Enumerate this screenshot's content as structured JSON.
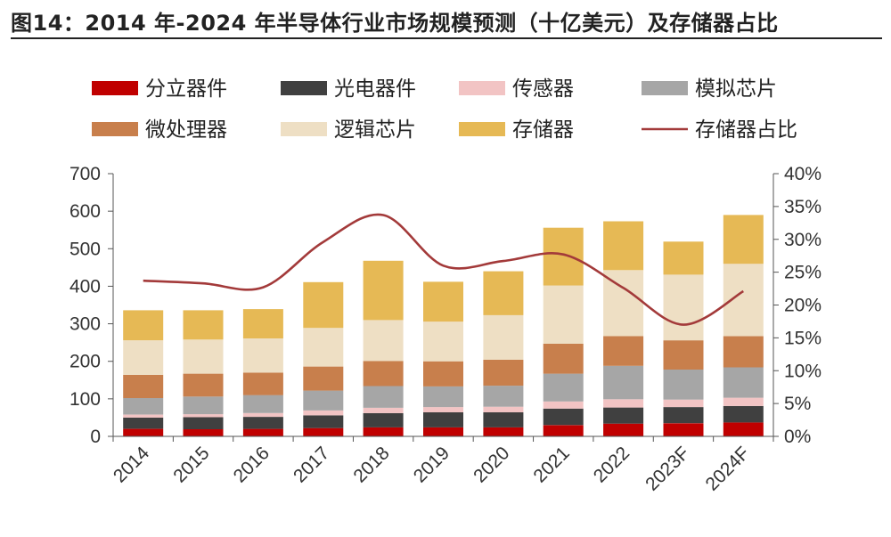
{
  "title": "图14：2014 年-2024 年半导体行业市场规模预测（十亿美元）及存储器占比",
  "chart_data": {
    "type": "bar",
    "stacked": true,
    "categories": [
      "2014",
      "2015",
      "2016",
      "2017",
      "2018",
      "2019",
      "2020",
      "2021",
      "2022",
      "2023F",
      "2024F"
    ],
    "ylim": [
      0,
      700
    ],
    "y_ticks": [
      "0",
      "100",
      "200",
      "300",
      "400",
      "500",
      "600",
      "700"
    ],
    "y2lim": [
      0,
      40
    ],
    "y2_ticks": [
      "0%",
      "5%",
      "10%",
      "15%",
      "20%",
      "25%",
      "30%",
      "35%",
      "40%"
    ],
    "grid": false,
    "legend_position": "top",
    "series": [
      {
        "name": "分立器件",
        "color": "#c00000",
        "values": [
          20,
          19,
          20,
          22,
          24,
          24,
          24,
          30,
          34,
          35,
          37
        ]
      },
      {
        "name": "光电器件",
        "color": "#404040",
        "values": [
          30,
          32,
          32,
          34,
          38,
          40,
          40,
          44,
          43,
          43,
          44
        ]
      },
      {
        "name": "传感器",
        "color": "#f2c4c4",
        "values": [
          8,
          8,
          10,
          13,
          14,
          14,
          15,
          19,
          22,
          20,
          22
        ]
      },
      {
        "name": "模拟芯片",
        "color": "#a6a6a6",
        "values": [
          44,
          47,
          48,
          53,
          58,
          55,
          56,
          74,
          89,
          80,
          81
        ]
      },
      {
        "name": "微处理器",
        "color": "#c87f4c",
        "values": [
          62,
          61,
          60,
          64,
          67,
          67,
          69,
          80,
          79,
          78,
          83
        ]
      },
      {
        "name": "逻辑芯片",
        "color": "#eedfc4",
        "values": [
          92,
          91,
          91,
          103,
          109,
          106,
          119,
          155,
          176,
          175,
          193
        ]
      },
      {
        "name": "存储器",
        "color": "#e6b955",
        "values": [
          80,
          78,
          78,
          122,
          158,
          106,
          117,
          154,
          130,
          88,
          130
        ]
      }
    ],
    "line_series": {
      "name": "存储器占比",
      "color": "#a33a3a",
      "axis": "right",
      "values": [
        23.7,
        23.3,
        22.7,
        29.6,
        33.7,
        26.0,
        26.7,
        27.7,
        22.6,
        17.0,
        22.1
      ]
    }
  }
}
